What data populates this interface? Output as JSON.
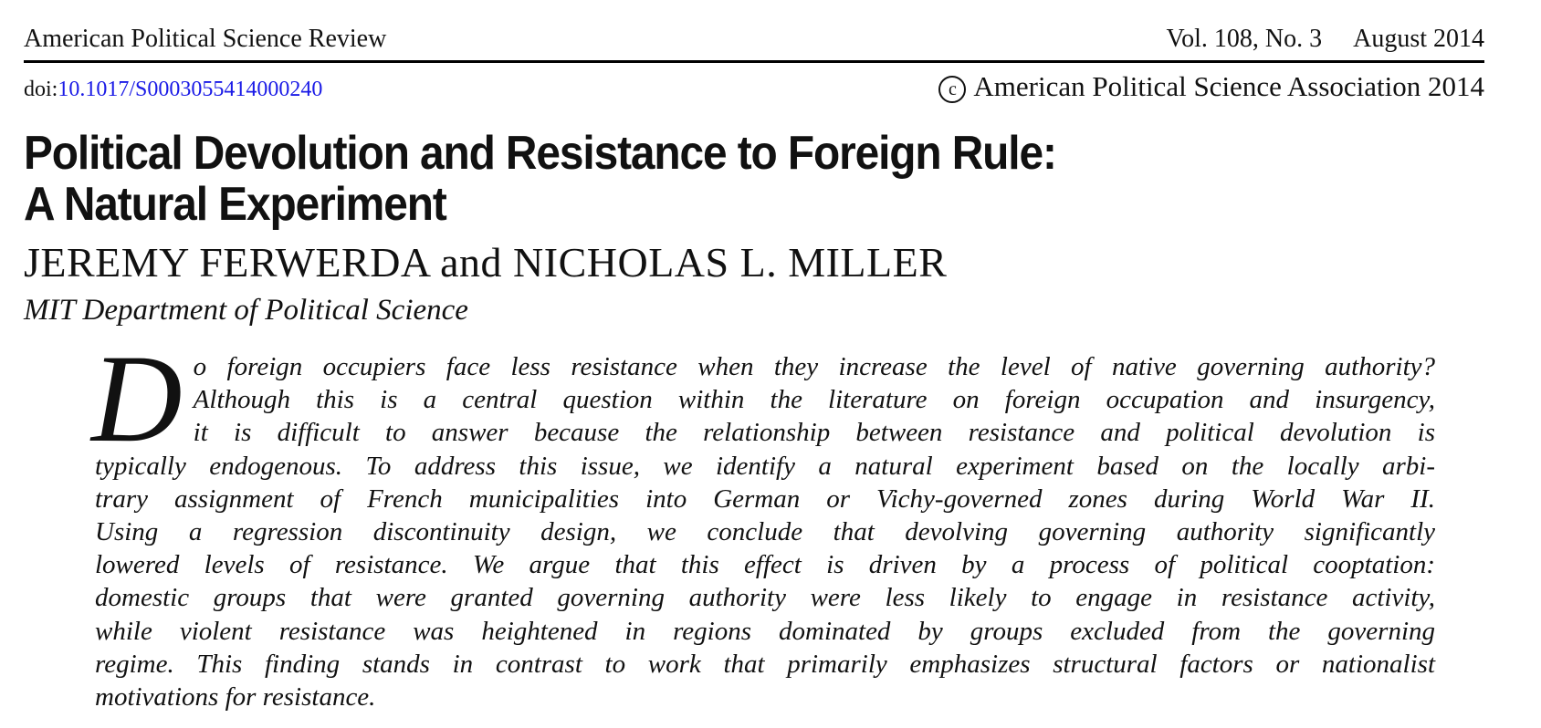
{
  "header": {
    "journal": "American Political Science Review",
    "volume_issue": "Vol. 108, No. 3",
    "date": "August 2014",
    "doi_prefix": "doi:",
    "doi_link": "10.1017/S0003055414000240",
    "copyright_symbol": "c",
    "copyright_text": "American Political Science Association 2014"
  },
  "article": {
    "title_lines": [
      "Political Devolution and Resistance to Foreign Rule:",
      "A Natural Experiment"
    ],
    "authors": "JEREMY FERWERDA and NICHOLAS L. MILLER",
    "affiliation": "MIT Department of Political Science"
  },
  "abstract": {
    "drop_cap": "D",
    "lines": [
      "o foreign occupiers face less resistance when they increase the level of native governing authority?",
      "Although this is a central question within the literature on foreign occupation and insurgency,",
      "it is difficult to answer because the relationship between resistance and political devolution is",
      "typically endogenous. To address this issue, we identify a natural experiment based on the locally arbi-",
      "trary assignment of French municipalities into German or Vichy-governed zones during World War II.",
      "Using a regression discontinuity design, we conclude that devolving governing authority significantly",
      "lowered levels of resistance. We argue that this effect is driven by a process of political cooptation:",
      "domestic groups that were granted governing authority were less likely to engage in resistance activity,",
      "while violent resistance was heightened in regions dominated by groups excluded from the governing",
      "regime. This finding stands in contrast to work that primarily emphasizes structural factors or nationalist",
      "motivations for resistance."
    ]
  },
  "colors": {
    "text": "#111111",
    "link": "#1a1ae6",
    "rule": "#000000",
    "background": "#ffffff"
  }
}
